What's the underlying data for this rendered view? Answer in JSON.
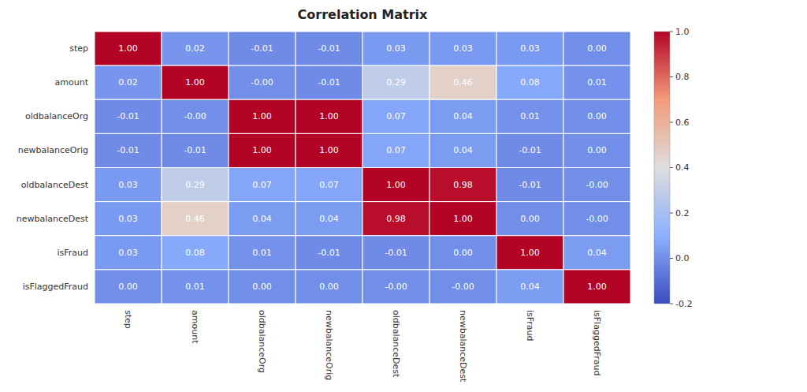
{
  "chart_data": {
    "type": "heatmap",
    "title": "Correlation Matrix",
    "categories": [
      "step",
      "amount",
      "oldbalanceOrg",
      "newbalanceOrig",
      "oldbalanceDest",
      "newbalanceDest",
      "isFraud",
      "isFlaggedFraud"
    ],
    "values": [
      [
        1.0,
        0.02,
        -0.01,
        -0.01,
        0.03,
        0.03,
        0.03,
        0.0
      ],
      [
        0.02,
        1.0,
        -0.0,
        -0.01,
        0.29,
        0.46,
        0.08,
        0.01
      ],
      [
        -0.01,
        -0.0,
        1.0,
        1.0,
        0.07,
        0.04,
        0.01,
        0.0
      ],
      [
        -0.01,
        -0.01,
        1.0,
        1.0,
        0.07,
        0.04,
        -0.01,
        0.0
      ],
      [
        0.03,
        0.29,
        0.07,
        0.07,
        1.0,
        0.98,
        -0.01,
        -0.0
      ],
      [
        0.03,
        0.46,
        0.04,
        0.04,
        0.98,
        1.0,
        0.0,
        -0.0
      ],
      [
        0.03,
        0.08,
        0.01,
        -0.01,
        -0.01,
        0.0,
        1.0,
        0.04
      ],
      [
        0.0,
        0.01,
        0.0,
        0.0,
        -0.0,
        -0.0,
        0.04,
        1.0
      ]
    ],
    "value_labels": [
      [
        "1.00",
        "0.02",
        "-0.01",
        "-0.01",
        "0.03",
        "0.03",
        "0.03",
        "0.00"
      ],
      [
        "0.02",
        "1.00",
        "-0.00",
        "-0.01",
        "0.29",
        "0.46",
        "0.08",
        "0.01"
      ],
      [
        "-0.01",
        "-0.00",
        "1.00",
        "1.00",
        "0.07",
        "0.04",
        "0.01",
        "0.00"
      ],
      [
        "-0.01",
        "-0.01",
        "1.00",
        "1.00",
        "0.07",
        "0.04",
        "-0.01",
        "0.00"
      ],
      [
        "0.03",
        "0.29",
        "0.07",
        "0.07",
        "1.00",
        "0.98",
        "-0.01",
        "-0.00"
      ],
      [
        "0.03",
        "0.46",
        "0.04",
        "0.04",
        "0.98",
        "1.00",
        "0.00",
        "-0.00"
      ],
      [
        "0.03",
        "0.08",
        "0.01",
        "-0.01",
        "-0.01",
        "0.00",
        "1.00",
        "0.04"
      ],
      [
        "0.00",
        "0.01",
        "0.00",
        "0.00",
        "-0.00",
        "-0.00",
        "0.04",
        "1.00"
      ]
    ],
    "data_labels": true,
    "color_range": [
      -0.2,
      1.0
    ],
    "color_ticks": [
      -0.2,
      {
        "value": 0,
        "label": "0.0"
      },
      {
        "value": 0.2,
        "label": "0.2"
      },
      {
        "value": 0.4,
        "label": "0.4"
      },
      {
        "value": 0.6,
        "label": "0.6"
      },
      {
        "value": 0.8,
        "label": "0.8"
      },
      {
        "value": 1.0,
        "label": "1.0"
      }
    ]
  }
}
